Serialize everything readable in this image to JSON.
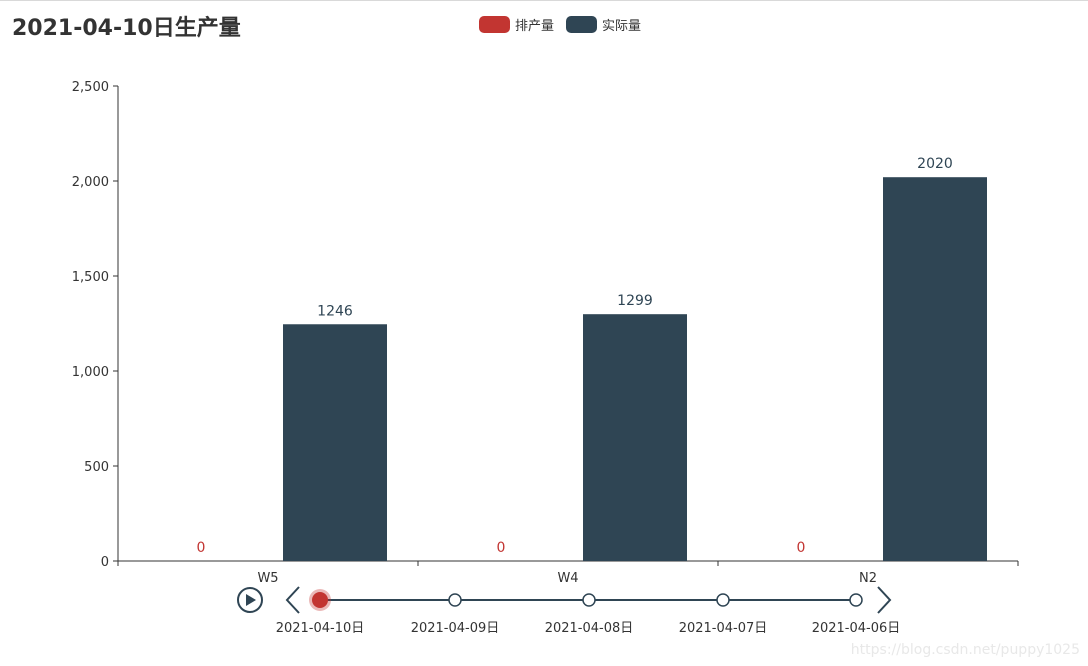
{
  "chart_data": {
    "type": "bar",
    "title": "2021-04-10日生产量",
    "categories": [
      "W5",
      "W4",
      "N2"
    ],
    "series": [
      {
        "name": "排产量",
        "values": [
          0,
          0,
          0
        ],
        "color": "#c23531"
      },
      {
        "name": "实际量",
        "values": [
          1246,
          1299,
          2020
        ],
        "color": "#2f4554"
      }
    ],
    "ylim": [
      0,
      2500
    ],
    "yticks": [
      "0",
      "500",
      "1,000",
      "1,500",
      "2,000",
      "2,500"
    ],
    "ytick_values": [
      0,
      500,
      1000,
      1500,
      2000,
      2500
    ],
    "legend_position": "top-center",
    "grid": false
  },
  "timeline": {
    "items": [
      "2021-04-10日",
      "2021-04-09日",
      "2021-04-08日",
      "2021-04-07日",
      "2021-04-06日"
    ],
    "current_index": 0,
    "line_color": "#2f4554",
    "active_color": "#c23531"
  },
  "watermark": "https://blog.csdn.net/puppy1025"
}
